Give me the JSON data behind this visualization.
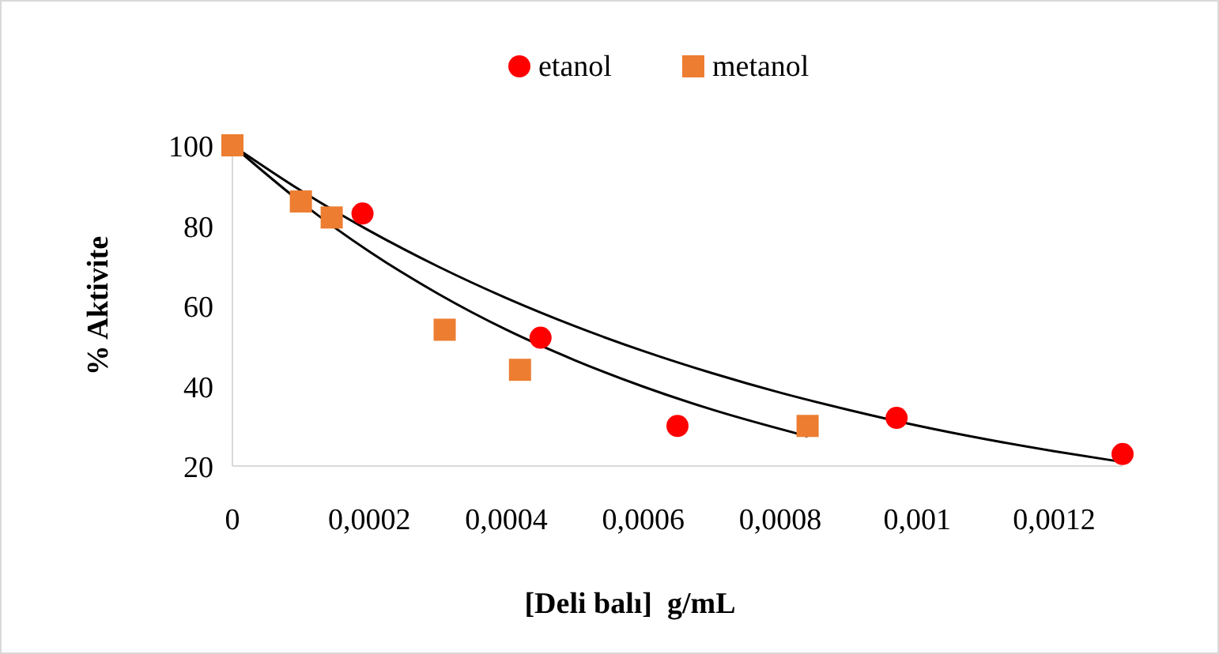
{
  "chart_data": {
    "type": "scatter",
    "xlabel": "[Deli balı]  g/mL",
    "ylabel": "% Aktivite",
    "xlim": [
      0,
      0.0013
    ],
    "ylim": [
      20,
      100
    ],
    "xticks": [
      0,
      {
        "value": 0.0002,
        "label": "0,0002"
      },
      {
        "value": 0.0004,
        "label": "0,0004"
      },
      {
        "value": 0.0006,
        "label": "0,0006"
      },
      {
        "value": 0.0008,
        "label": "0,0008"
      },
      {
        "value": 0.001,
        "label": "0,001"
      },
      {
        "value": 0.0012,
        "label": "0,0012"
      }
    ],
    "yticks": [
      20,
      40,
      60,
      80,
      100
    ],
    "grid": false,
    "legend": "top",
    "series": [
      {
        "name": "etanol",
        "color": "#ff0000",
        "marker": "circle",
        "x": [
          0.00019,
          0.00045,
          0.00065,
          0.00097,
          0.0013
        ],
        "values": [
          83,
          52,
          30,
          32,
          23
        ]
      },
      {
        "name": "metanol",
        "color": "#ed7d31",
        "marker": "square",
        "x": [
          0,
          0.0001,
          0.000145,
          0.00031,
          0.00042,
          0.00084
        ],
        "values": [
          100,
          86,
          82,
          54,
          44,
          30
        ]
      },
      {
        "type": "line",
        "color": "#000000",
        "x": [
          0,
          0.0001,
          0.0002,
          0.0003,
          0.0004,
          0.0005,
          0.0006,
          0.0007,
          0.0008,
          0.0009,
          0.001,
          0.0011,
          0.0012,
          0.0013
        ],
        "values": [
          100,
          88.7,
          78.7,
          69.8,
          61.9,
          54.9,
          48.7,
          43.2,
          38.3,
          34,
          30.1,
          26.7,
          23.7,
          21
        ]
      },
      {
        "type": "line",
        "color": "#000000",
        "x": [
          0,
          0.0001,
          0.0002,
          0.0003,
          0.0004,
          0.0005,
          0.0006,
          0.0007,
          0.00084
        ],
        "values": [
          100,
          85.8,
          73.5,
          63,
          54,
          46.4,
          39.8,
          34.1,
          27.4
        ]
      }
    ]
  }
}
